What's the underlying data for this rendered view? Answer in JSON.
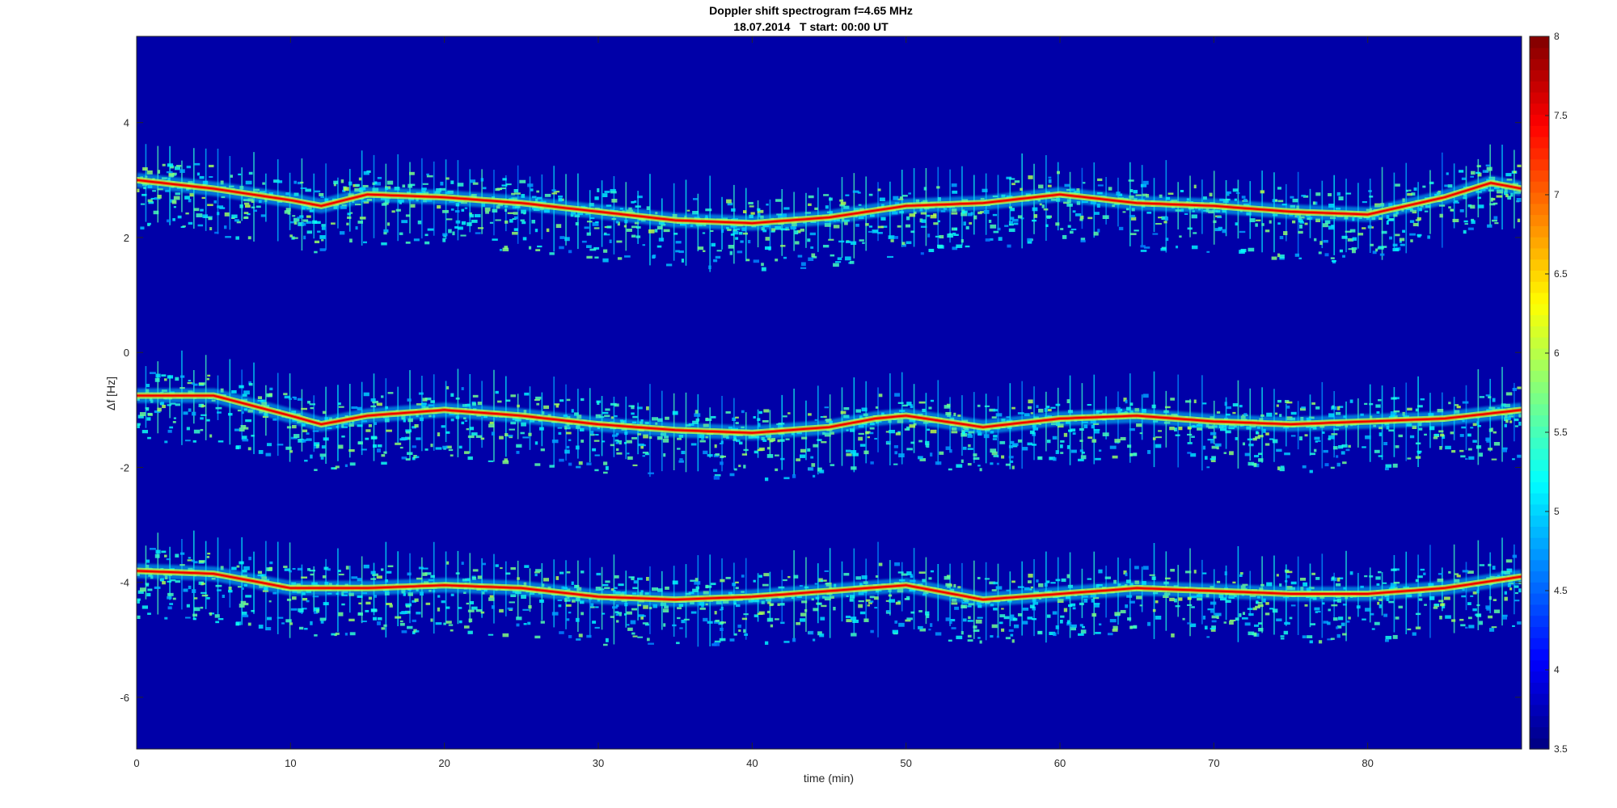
{
  "chart_data": {
    "type": "heatmap",
    "title": "Doppler shift spectrogram f=4.65 MHz",
    "subtitle": "18.07.2014   T start: 00:00 UT",
    "xlabel": "time (min)",
    "ylabel": "Δf [Hz]",
    "xlim": [
      0,
      90
    ],
    "ylim": [
      -6.9,
      5.5
    ],
    "xticks": [
      0,
      10,
      20,
      30,
      40,
      50,
      60,
      70,
      80
    ],
    "yticks": [
      -6,
      -4,
      -2,
      0,
      2,
      4
    ],
    "colorbar": {
      "range": [
        3.5,
        8
      ],
      "ticks": [
        3.5,
        4,
        4.5,
        5,
        5.5,
        6,
        6.5,
        7,
        7.5,
        8
      ],
      "colormap": "jet"
    },
    "background_color": "#0000a8",
    "series": [
      {
        "x": [
          0,
          5,
          10,
          12,
          15,
          20,
          25,
          30,
          35,
          40,
          45,
          50,
          55,
          60,
          65,
          70,
          75,
          80,
          85,
          88,
          90
        ],
        "y": [
          3.0,
          2.85,
          2.65,
          2.55,
          2.75,
          2.7,
          2.6,
          2.45,
          2.3,
          2.25,
          2.35,
          2.55,
          2.6,
          2.75,
          2.6,
          2.55,
          2.45,
          2.4,
          2.7,
          2.95,
          2.85
        ]
      },
      {
        "x": [
          0,
          5,
          10,
          12,
          15,
          20,
          25,
          30,
          35,
          40,
          45,
          48,
          50,
          55,
          60,
          65,
          70,
          75,
          80,
          85,
          90
        ],
        "y": [
          -0.75,
          -0.75,
          -1.1,
          -1.25,
          -1.1,
          -1.0,
          -1.1,
          -1.25,
          -1.35,
          -1.4,
          -1.3,
          -1.15,
          -1.1,
          -1.3,
          -1.15,
          -1.1,
          -1.2,
          -1.25,
          -1.2,
          -1.15,
          -1.0
        ]
      },
      {
        "x": [
          0,
          5,
          10,
          15,
          20,
          25,
          30,
          35,
          40,
          45,
          50,
          55,
          60,
          65,
          70,
          75,
          80,
          85,
          90
        ],
        "y": [
          -3.8,
          -3.85,
          -4.1,
          -4.1,
          -4.05,
          -4.1,
          -4.25,
          -4.3,
          -4.25,
          -4.15,
          -4.05,
          -4.3,
          -4.2,
          -4.1,
          -4.15,
          -4.2,
          -4.2,
          -4.1,
          -3.9
        ]
      }
    ]
  }
}
